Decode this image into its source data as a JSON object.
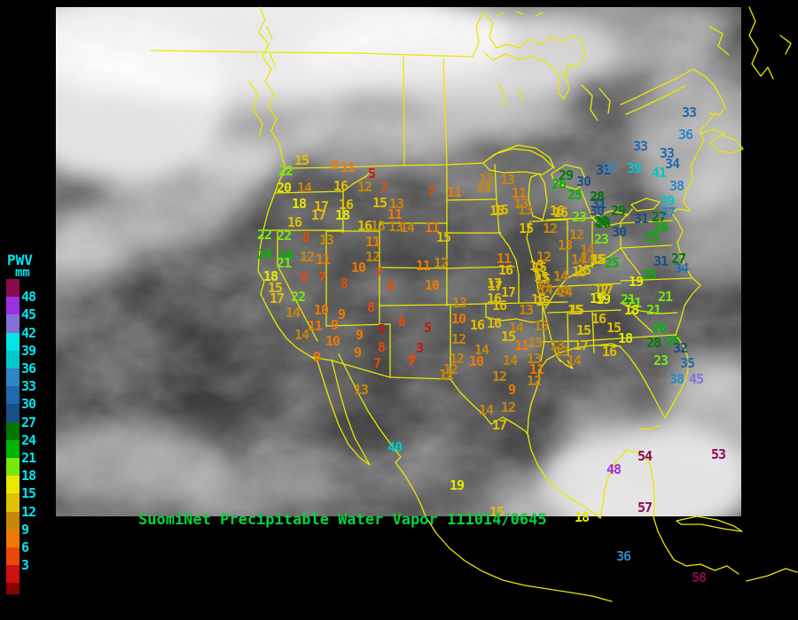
{
  "title": {
    "text": "SuomiNet Precipitable Water Vapor 111014/0645",
    "color": "#00d33c"
  },
  "legend": {
    "title": "PWV",
    "unit": "mm",
    "text_color": "#00e5ee",
    "ticks": [
      "48",
      "45",
      "42",
      "39",
      "36",
      "33",
      "30",
      "27",
      "24",
      "21",
      "18",
      "15",
      "12",
      "9",
      "6",
      "3"
    ],
    "swatches": [
      "#8b0a50",
      "#9b30e0",
      "#8470d8",
      "#00e5e5",
      "#00c8c8",
      "#2e86c8",
      "#2068b0",
      "#1a4e86",
      "#007800",
      "#00b400",
      "#76e810",
      "#e8e800",
      "#e0c000",
      "#c8860b",
      "#f07800",
      "#e84808",
      "#cc1111",
      "#8b0000"
    ]
  },
  "map_overlay": {
    "line_color": "#e8e800"
  },
  "value_color_stops": [
    [
      51,
      "#8b0a50"
    ],
    [
      48,
      "#9b30e0"
    ],
    [
      45,
      "#8470d8"
    ],
    [
      42,
      "#00e5e5"
    ],
    [
      39,
      "#00c8c8"
    ],
    [
      36,
      "#2e86c8"
    ],
    [
      33,
      "#2068b0"
    ],
    [
      30,
      "#1a4e86"
    ],
    [
      27,
      "#007800"
    ],
    [
      24,
      "#00b400"
    ],
    [
      21,
      "#76e810"
    ],
    [
      18,
      "#e8e800"
    ],
    [
      15,
      "#e0c000"
    ],
    [
      12,
      "#c8860b"
    ],
    [
      9,
      "#f07800"
    ],
    [
      6,
      "#e84808"
    ],
    [
      3,
      "#cc1111"
    ],
    [
      0,
      "#8b0000"
    ]
  ],
  "stations": [
    [
      340,
      181,
      15
    ],
    [
      377,
      186,
      9
    ],
    [
      392,
      189,
      11
    ],
    [
      419,
      196,
      5
    ],
    [
      322,
      193,
      22
    ],
    [
      320,
      212,
      20
    ],
    [
      343,
      212,
      14
    ],
    [
      384,
      210,
      16
    ],
    [
      411,
      211,
      12
    ],
    [
      433,
      212,
      7
    ],
    [
      486,
      216,
      7
    ],
    [
      337,
      230,
      18
    ],
    [
      362,
      233,
      17
    ],
    [
      390,
      231,
      16
    ],
    [
      428,
      229,
      15
    ],
    [
      447,
      230,
      13
    ],
    [
      359,
      243,
      17
    ],
    [
      386,
      243,
      18
    ],
    [
      445,
      242,
      11
    ],
    [
      332,
      251,
      16
    ],
    [
      411,
      255,
      16
    ],
    [
      426,
      255,
      13
    ],
    [
      446,
      256,
      13
    ],
    [
      459,
      257,
      14
    ],
    [
      487,
      257,
      11
    ],
    [
      298,
      265,
      22
    ],
    [
      320,
      266,
      22
    ],
    [
      345,
      268,
      8
    ],
    [
      368,
      271,
      13
    ],
    [
      420,
      273,
      11
    ],
    [
      298,
      287,
      24
    ],
    [
      322,
      288,
      24
    ],
    [
      320,
      297,
      21
    ],
    [
      346,
      290,
      12
    ],
    [
      364,
      293,
      11
    ],
    [
      420,
      290,
      12
    ],
    [
      404,
      302,
      10
    ],
    [
      427,
      308,
      7
    ],
    [
      305,
      312,
      18
    ],
    [
      343,
      313,
      6
    ],
    [
      363,
      313,
      7
    ],
    [
      388,
      320,
      8
    ],
    [
      440,
      323,
      8
    ],
    [
      310,
      325,
      15
    ],
    [
      312,
      337,
      17
    ],
    [
      336,
      335,
      22
    ],
    [
      418,
      347,
      8
    ],
    [
      330,
      353,
      14
    ],
    [
      362,
      350,
      10
    ],
    [
      385,
      355,
      9
    ],
    [
      453,
      363,
      6
    ],
    [
      355,
      368,
      11
    ],
    [
      377,
      367,
      9
    ],
    [
      430,
      372,
      5
    ],
    [
      340,
      378,
      14
    ],
    [
      405,
      378,
      9
    ],
    [
      375,
      385,
      10
    ],
    [
      403,
      398,
      9
    ],
    [
      430,
      392,
      8
    ],
    [
      357,
      403,
      9
    ],
    [
      425,
      410,
      7
    ],
    [
      463,
      408,
      7
    ],
    [
      548,
      202,
      13
    ],
    [
      572,
      203,
      13
    ],
    [
      545,
      212,
      14
    ],
    [
      512,
      217,
      11
    ],
    [
      585,
      218,
      11
    ],
    [
      638,
      198,
      29
    ],
    [
      630,
      208,
      26
    ],
    [
      658,
      205,
      30
    ],
    [
      648,
      220,
      25
    ],
    [
      673,
      222,
      28
    ],
    [
      675,
      230,
      31
    ],
    [
      673,
      238,
      30
    ],
    [
      587,
      230,
      13
    ],
    [
      565,
      237,
      15
    ],
    [
      632,
      240,
      16
    ],
    [
      653,
      245,
      23
    ],
    [
      678,
      250,
      28
    ],
    [
      593,
      258,
      15
    ],
    [
      620,
      258,
      12
    ],
    [
      650,
      265,
      12
    ],
    [
      678,
      270,
      23
    ],
    [
      500,
      268,
      15
    ],
    [
      637,
      277,
      13
    ],
    [
      662,
      282,
      14
    ],
    [
      680,
      192,
      31
    ],
    [
      722,
      165,
      33
    ],
    [
      752,
      173,
      33
    ],
    [
      688,
      190,
      37
    ],
    [
      715,
      190,
      39
    ],
    [
      743,
      195,
      41
    ],
    [
      758,
      185,
      34
    ],
    [
      763,
      210,
      38
    ],
    [
      752,
      227,
      39
    ],
    [
      697,
      238,
      29
    ],
    [
      723,
      247,
      31
    ],
    [
      743,
      245,
      27
    ],
    [
      745,
      257,
      26
    ],
    [
      698,
      262,
      30
    ],
    [
      735,
      268,
      25
    ],
    [
      765,
      292,
      27
    ],
    [
      745,
      295,
      31
    ],
    [
      777,
      127,
      33
    ],
    [
      773,
      152,
      36
    ],
    [
      768,
      303,
      34
    ],
    [
      753,
      240,
      37
    ],
    [
      560,
      238,
      15
    ],
    [
      592,
      237,
      13
    ],
    [
      628,
      238,
      16
    ],
    [
      680,
      252,
      28
    ],
    [
      568,
      292,
      11
    ],
    [
      613,
      290,
      12
    ],
    [
      663,
      292,
      14
    ],
    [
      675,
      293,
      15
    ],
    [
      690,
      297,
      25
    ],
    [
      570,
      305,
      16
    ],
    [
      605,
      300,
      15
    ],
    [
      653,
      307,
      15
    ],
    [
      557,
      320,
      17
    ],
    [
      612,
      315,
      15
    ],
    [
      632,
      312,
      14
    ],
    [
      615,
      327,
      14
    ],
    [
      633,
      328,
      14
    ],
    [
      678,
      327,
      17
    ],
    [
      673,
      337,
      19
    ],
    [
      607,
      338,
      15
    ],
    [
      557,
      337,
      16
    ],
    [
      717,
      318,
      19
    ],
    [
      708,
      338,
      21
    ],
    [
      477,
      300,
      11
    ],
    [
      497,
      297,
      12
    ],
    [
      608,
      302,
      15
    ],
    [
      610,
      313,
      15
    ],
    [
      487,
      322,
      10
    ],
    [
      558,
      323,
      17
    ],
    [
      573,
      330,
      17
    ],
    [
      612,
      322,
      14
    ],
    [
      637,
      330,
      14
    ],
    [
      518,
      342,
      13
    ],
    [
      563,
      345,
      16
    ],
    [
      612,
      340,
      15
    ],
    [
      593,
      350,
      13
    ],
    [
      650,
      350,
      15
    ],
    [
      517,
      360,
      10
    ],
    [
      538,
      367,
      16
    ],
    [
      557,
      365,
      16
    ],
    [
      482,
      370,
      5
    ],
    [
      582,
      370,
      14
    ],
    [
      610,
      368,
      13
    ],
    [
      517,
      383,
      12
    ],
    [
      573,
      380,
      15
    ],
    [
      588,
      390,
      11
    ],
    [
      603,
      387,
      13
    ],
    [
      628,
      390,
      13
    ],
    [
      473,
      393,
      3
    ],
    [
      543,
      395,
      14
    ],
    [
      633,
      397,
      13
    ],
    [
      465,
      407,
      7
    ],
    [
      515,
      405,
      12
    ],
    [
      537,
      408,
      10
    ],
    [
      575,
      407,
      14
    ],
    [
      602,
      405,
      13
    ],
    [
      508,
      417,
      12
    ],
    [
      605,
      417,
      11
    ],
    [
      652,
      293,
      14
    ],
    [
      673,
      293,
      15
    ],
    [
      658,
      305,
      15
    ],
    [
      732,
      310,
      25
    ],
    [
      683,
      327,
      17
    ],
    [
      680,
      338,
      19
    ],
    [
      715,
      342,
      21
    ],
    [
      750,
      335,
      21
    ],
    [
      712,
      350,
      18
    ],
    [
      737,
      350,
      21
    ],
    [
      648,
      350,
      15
    ],
    [
      675,
      360,
      16
    ],
    [
      658,
      373,
      15
    ],
    [
      692,
      370,
      15
    ],
    [
      743,
      370,
      26
    ],
    [
      705,
      382,
      18
    ],
    [
      737,
      387,
      28
    ],
    [
      758,
      385,
      26
    ],
    [
      655,
      390,
      17
    ],
    [
      687,
      397,
      16
    ],
    [
      647,
      407,
      14
    ],
    [
      767,
      393,
      32
    ],
    [
      745,
      407,
      23
    ],
    [
      775,
      410,
      35
    ],
    [
      763,
      428,
      38
    ],
    [
      785,
      428,
      45
    ],
    [
      407,
      440,
      13
    ],
    [
      503,
      423,
      12
    ],
    [
      563,
      425,
      12
    ],
    [
      602,
      430,
      12
    ],
    [
      577,
      440,
      9
    ],
    [
      548,
      463,
      14
    ],
    [
      573,
      460,
      12
    ],
    [
      563,
      480,
      17
    ],
    [
      445,
      505,
      40
    ],
    [
      515,
      548,
      19
    ],
    [
      560,
      578,
      15
    ],
    [
      656,
      584,
      18
    ],
    [
      727,
      515,
      54
    ],
    [
      692,
      530,
      48
    ],
    [
      810,
      513,
      53
    ],
    [
      727,
      573,
      57
    ],
    [
      703,
      628,
      36
    ],
    [
      788,
      652,
      58
    ]
  ]
}
